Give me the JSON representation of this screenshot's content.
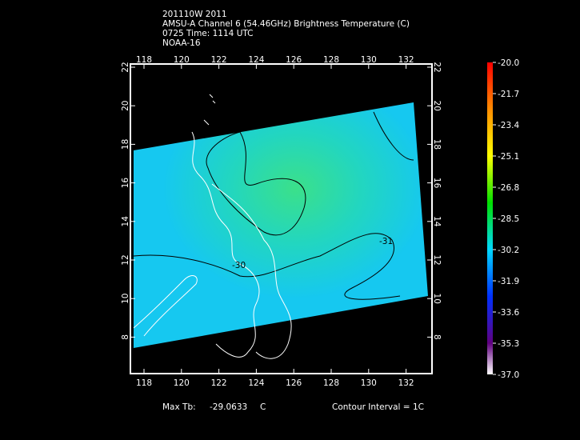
{
  "header": {
    "lines": [
      "201110W 2011",
      "AMSU-A Channel 6 (54.46GHz) Brightness Temperature (C)",
      "0725 Time: 1114 UTC",
      "NOAA-16"
    ]
  },
  "map": {
    "lon_ticks": [
      "118",
      "120",
      "122",
      "124",
      "126",
      "128",
      "130",
      "132"
    ],
    "lat_ticks": [
      "22",
      "20",
      "18",
      "16",
      "14",
      "12",
      "10",
      "8"
    ],
    "contour_labels": [
      "-30",
      "-31"
    ]
  },
  "colorbar": {
    "labels": [
      "-20.0",
      "-21.7",
      "-23.4",
      "-25.1",
      "-26.8",
      "-28.5",
      "-30.2",
      "-31.9",
      "-33.6",
      "-35.3",
      "-37.0"
    ]
  },
  "footer": {
    "max_label": "Max Tb:",
    "max_value": "-29.0633",
    "max_unit": "C",
    "contour_interval": "Contour Interval = 1C"
  }
}
